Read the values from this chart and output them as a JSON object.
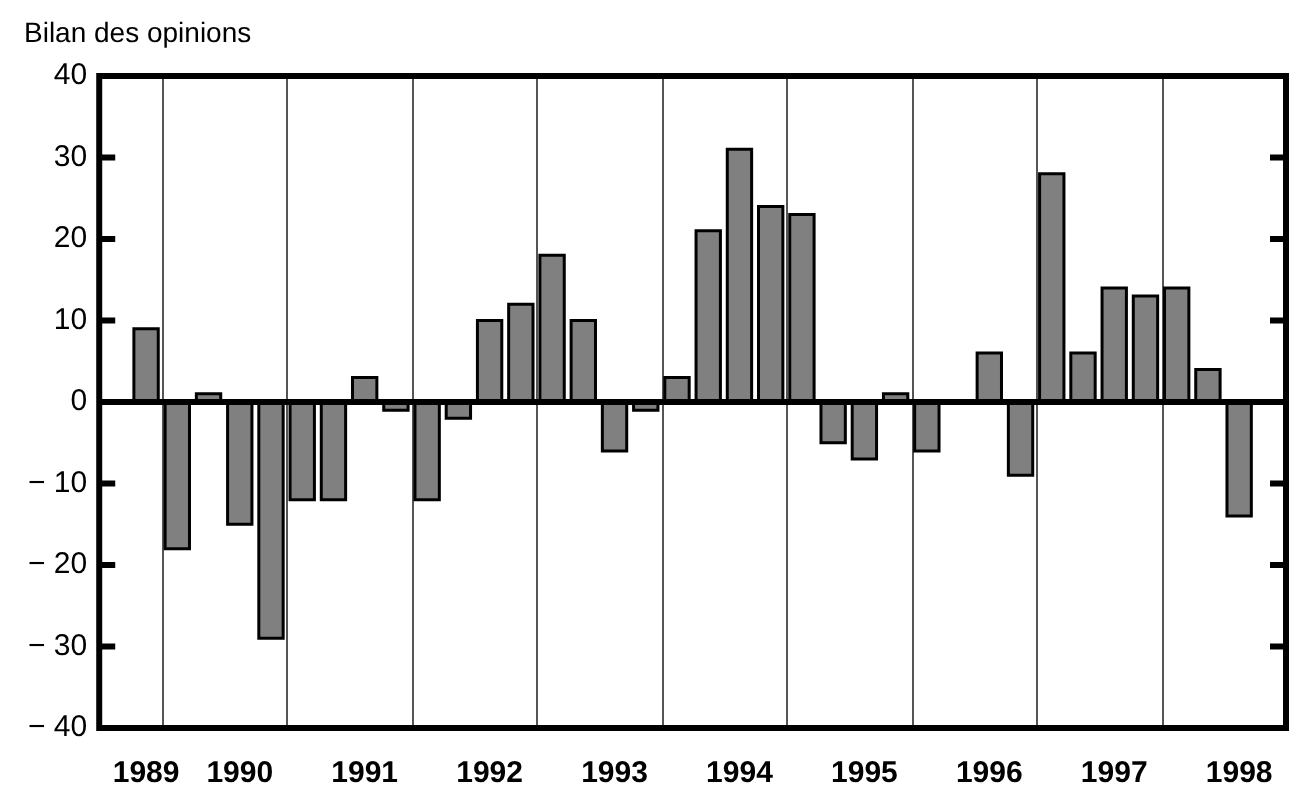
{
  "chart_data": {
    "type": "bar",
    "ylabel": "Bilan des opinions",
    "categories": [
      null,
      "1989",
      null,
      null,
      "1990",
      null,
      null,
      null,
      "1991",
      null,
      null,
      null,
      "1992",
      null,
      null,
      null,
      "1993",
      null,
      null,
      null,
      "1994",
      null,
      null,
      null,
      "1995",
      null,
      null,
      null,
      "1996",
      null,
      null,
      null,
      "1997",
      null,
      null,
      null,
      "1998",
      null
    ],
    "values": [
      null,
      9,
      -18,
      1,
      -15,
      -29,
      -12,
      -12,
      3,
      -1,
      -12,
      -2,
      10,
      12,
      18,
      10,
      -6,
      -1,
      3,
      21,
      31,
      24,
      23,
      -5,
      -7,
      1,
      -6,
      null,
      6,
      -9,
      28,
      6,
      14,
      13,
      14,
      4,
      -14,
      null
    ],
    "color": "#808080",
    "ylim": [
      -40,
      40
    ],
    "yticks": [
      {
        "value": -40,
        "label": "− 40"
      },
      {
        "value": -30,
        "label": "− 30"
      },
      {
        "value": -20,
        "label": "− 20"
      },
      {
        "value": -10,
        "label": "− 10"
      },
      0,
      10,
      20,
      30,
      40
    ],
    "grid": "x",
    "ref_lines": [
      {
        "axis": "y",
        "value": 0
      }
    ]
  }
}
